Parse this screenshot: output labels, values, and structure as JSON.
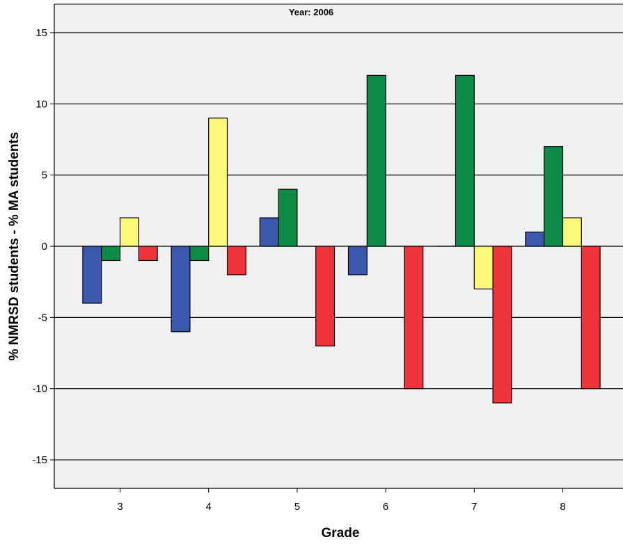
{
  "chart_data": {
    "type": "bar",
    "title": "Year: 2006",
    "xlabel": "Grade",
    "ylabel": "% NMRSD students - % MA students",
    "ylim": [
      -17,
      17
    ],
    "yticks": [
      -15,
      -10,
      -5,
      0,
      5,
      10,
      15
    ],
    "ytick_labels": [
      "-15",
      "-10",
      "-5",
      "0",
      "5",
      "10",
      "15"
    ],
    "grid": true,
    "categories": [
      "3",
      "4",
      "5",
      "6",
      "7",
      "8"
    ],
    "series": [
      {
        "color": "#3c58ad",
        "values": [
          -4,
          -6,
          2,
          -2,
          0,
          1
        ]
      },
      {
        "color": "#0e8b47",
        "values": [
          -1,
          -1,
          4,
          12,
          12,
          7
        ]
      },
      {
        "color": "#fbf87a",
        "values": [
          2,
          9,
          0,
          0,
          -3,
          2
        ]
      },
      {
        "color": "#ef333b",
        "values": [
          -1,
          -2,
          -7,
          -10,
          -11,
          -10
        ]
      }
    ],
    "colors": {
      "background": "#f0f0f0",
      "grid": "#000000"
    }
  }
}
